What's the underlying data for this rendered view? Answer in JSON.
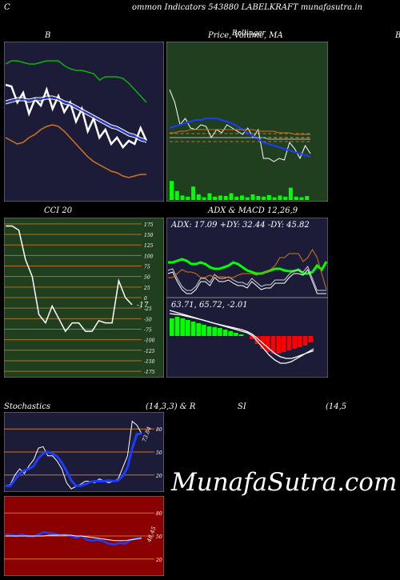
{
  "header": {
    "left_glyph": "C",
    "title": "ommon  Indicators 543880  LABELKRAFT munafasutra.in",
    "right_glyph": "B"
  },
  "labels": {
    "bb": "B",
    "price": "Price,  Volume,  MA",
    "price_overlay": "Bollinger",
    "cci": "CCI 20",
    "adx_macd": "ADX  & MACD 12,26,9",
    "adx_values": "ADX: 17.09  +DY: 32.44  -DY: 45.82",
    "macd_values": "63.71,  65.72,  -2.01",
    "stoch_left": "Stochastics",
    "stoch_params": "(14,3,3) & R",
    "si": "SI",
    "si_params": "(14,5",
    "stoch_value": "73.84",
    "rsi_value": "48.45"
  },
  "watermark": "MunafaSutra.com",
  "colors": {
    "navy": "#1c1c38",
    "green_panel": "#1f3f1f",
    "red_panel": "#8b0000",
    "orange": "#d2751a",
    "green": "#0ab20a",
    "blue": "#1e3cff",
    "lime": "#00ff00",
    "red": "#ff0000"
  },
  "chart_data": [
    {
      "type": "line",
      "name": "bollinger",
      "series": [
        {
          "name": "price",
          "values": [
            0.73,
            0.72,
            0.62,
            0.68,
            0.55,
            0.64,
            0.6,
            0.7,
            0.58,
            0.66,
            0.56,
            0.62,
            0.5,
            0.58,
            0.44,
            0.52,
            0.4,
            0.45,
            0.36,
            0.4,
            0.34,
            0.38,
            0.36,
            0.46,
            0.38
          ]
        },
        {
          "name": "upper",
          "values": [
            0.86,
            0.88,
            0.88,
            0.87,
            0.86,
            0.86,
            0.87,
            0.88,
            0.88,
            0.88,
            0.85,
            0.83,
            0.82,
            0.82,
            0.81,
            0.8,
            0.76,
            0.78,
            0.78,
            0.78,
            0.77,
            0.74,
            0.7,
            0.66,
            0.62
          ]
        },
        {
          "name": "middle",
          "values": [
            0.62,
            0.63,
            0.64,
            0.64,
            0.63,
            0.64,
            0.64,
            0.65,
            0.65,
            0.64,
            0.62,
            0.61,
            0.59,
            0.57,
            0.55,
            0.53,
            0.51,
            0.49,
            0.47,
            0.46,
            0.44,
            0.42,
            0.41,
            0.39,
            0.38
          ]
        },
        {
          "name": "lower",
          "values": [
            0.4,
            0.38,
            0.36,
            0.37,
            0.4,
            0.42,
            0.45,
            0.47,
            0.48,
            0.47,
            0.44,
            0.4,
            0.36,
            0.32,
            0.28,
            0.25,
            0.23,
            0.21,
            0.19,
            0.18,
            0.16,
            0.15,
            0.16,
            0.17,
            0.17
          ]
        }
      ],
      "ylim": [
        0,
        1
      ]
    },
    {
      "type": "line",
      "name": "price_volume_ma",
      "series": [
        {
          "name": "price",
          "values": [
            0.7,
            0.62,
            0.48,
            0.52,
            0.46,
            0.45,
            0.48,
            0.47,
            0.4,
            0.45,
            0.43,
            0.48,
            0.46,
            0.44,
            0.42,
            0.46,
            0.4,
            0.45,
            0.27,
            0.27,
            0.25,
            0.27,
            0.26,
            0.37,
            0.33,
            0.27,
            0.35,
            0.3
          ]
        },
        {
          "name": "ma_blue",
          "values": [
            0.46,
            0.47,
            0.48,
            0.49,
            0.5,
            0.51,
            0.51,
            0.52,
            0.52,
            0.52,
            0.51,
            0.5,
            0.49,
            0.47,
            0.45,
            0.43,
            0.41,
            0.39,
            0.37,
            0.36,
            0.35,
            0.34,
            0.33,
            0.32,
            0.31,
            0.3,
            0.29,
            0.28
          ]
        },
        {
          "name": "ma_orange",
          "values": [
            0.43,
            0.43,
            0.44,
            0.44,
            0.45,
            0.45,
            0.45,
            0.45,
            0.45,
            0.45,
            0.45,
            0.45,
            0.45,
            0.45,
            0.45,
            0.45,
            0.45,
            0.44,
            0.44,
            0.44,
            0.44,
            0.43,
            0.43,
            0.43,
            0.42,
            0.42,
            0.42,
            0.42
          ]
        },
        {
          "name": "ma_gray",
          "values": [
            0.4,
            0.4,
            0.4,
            0.4,
            0.4,
            0.4,
            0.4,
            0.4,
            0.4,
            0.4,
            0.4,
            0.4,
            0.4,
            0.4,
            0.4,
            0.4,
            0.4,
            0.4,
            0.4,
            0.39,
            0.39,
            0.39,
            0.39,
            0.39,
            0.39,
            0.39,
            0.39,
            0.39
          ]
        }
      ],
      "volume": [
        0.85,
        0.4,
        0.2,
        0.15,
        0.6,
        0.25,
        0.12,
        0.3,
        0.15,
        0.2,
        0.18,
        0.3,
        0.15,
        0.2,
        0.12,
        0.25,
        0.18,
        0.15,
        0.22,
        0.12,
        0.2,
        0.15,
        0.55,
        0.15,
        0.12,
        0.18
      ],
      "ylim": [
        0,
        1
      ]
    },
    {
      "type": "line",
      "name": "cci",
      "yticks": [
        175,
        150,
        125,
        100,
        75,
        50,
        25,
        0,
        -25,
        -50,
        -75,
        -100,
        -125,
        -150,
        -175
      ],
      "ylim": [
        -190,
        190
      ],
      "series": [
        {
          "name": "CCI 20",
          "values": [
            170,
            170,
            160,
            90,
            50,
            -40,
            -60,
            -20,
            -50,
            -80,
            -60,
            -60,
            -80,
            -80,
            -55,
            -60,
            -60,
            40,
            0,
            -17
          ]
        }
      ],
      "last_value": "-17"
    },
    {
      "type": "line",
      "name": "adx",
      "series": [
        {
          "name": "ADX",
          "values": [
            0.44,
            0.44,
            0.46,
            0.48,
            0.46,
            0.42,
            0.42,
            0.44,
            0.42,
            0.38,
            0.36,
            0.36,
            0.38,
            0.4,
            0.44,
            0.42,
            0.38,
            0.34,
            0.32,
            0.3,
            0.3,
            0.32,
            0.34,
            0.36,
            0.36,
            0.34,
            0.33,
            0.33,
            0.35,
            0.3,
            0.3,
            0.32,
            0.4,
            0.35,
            0.45
          ]
        },
        {
          "name": "+DY",
          "values": [
            0.3,
            0.32,
            0.2,
            0.1,
            0.05,
            0.05,
            0.1,
            0.2,
            0.2,
            0.15,
            0.25,
            0.2,
            0.2,
            0.22,
            0.18,
            0.15,
            0.15,
            0.12,
            0.2,
            0.15,
            0.1,
            0.12,
            0.12,
            0.18,
            0.18,
            0.18,
            0.25,
            0.3,
            0.3,
            0.28,
            0.35,
            0.2,
            0.05,
            0.05,
            0.05
          ]
        },
        {
          "name": "-DY",
          "values": [
            0.25,
            0.25,
            0.3,
            0.35,
            0.32,
            0.32,
            0.3,
            0.25,
            0.25,
            0.28,
            0.25,
            0.26,
            0.26,
            0.25,
            0.25,
            0.28,
            0.3,
            0.3,
            0.3,
            0.28,
            0.3,
            0.32,
            0.35,
            0.4,
            0.5,
            0.5,
            0.55,
            0.55,
            0.55,
            0.45,
            0.5,
            0.6,
            0.5,
            0.3,
            0.1
          ]
        }
      ],
      "ylim": [
        0,
        1
      ]
    },
    {
      "type": "bar",
      "name": "macd",
      "histogram": [
        0.55,
        0.6,
        0.55,
        0.5,
        0.45,
        0.4,
        0.35,
        0.3,
        0.28,
        0.25,
        0.2,
        0.15,
        0.1,
        0.05,
        0.0,
        -0.1,
        -0.25,
        -0.4,
        -0.5,
        -0.55,
        -0.55,
        -0.5,
        -0.45,
        -0.4,
        -0.35,
        -0.3,
        -0.2
      ],
      "series": [
        {
          "name": "macd",
          "values": [
            0.8,
            0.75,
            0.7,
            0.65,
            0.6,
            0.55,
            0.5,
            0.45,
            0.4,
            0.35,
            0.3,
            0.25,
            0.2,
            0.15,
            0.1,
            0.0,
            -0.2,
            -0.4,
            -0.6,
            -0.75,
            -0.85,
            -0.85,
            -0.8,
            -0.7,
            -0.6,
            -0.5,
            -0.4
          ]
        },
        {
          "name": "signal",
          "values": [
            0.7,
            0.68,
            0.66,
            0.62,
            0.58,
            0.54,
            0.5,
            0.45,
            0.4,
            0.36,
            0.32,
            0.28,
            0.24,
            0.2,
            0.14,
            0.05,
            -0.1,
            -0.25,
            -0.4,
            -0.55,
            -0.65,
            -0.7,
            -0.7,
            -0.65,
            -0.58,
            -0.52,
            -0.46
          ]
        }
      ],
      "ylim": [
        -1,
        1
      ]
    },
    {
      "type": "line",
      "name": "stochastics",
      "yticks": [
        80,
        50,
        20
      ],
      "ylim": [
        0,
        100
      ],
      "series": [
        {
          "name": "%K",
          "values": [
            5,
            8,
            20,
            28,
            22,
            32,
            40,
            55,
            57,
            45,
            45,
            38,
            28,
            10,
            2,
            5,
            8,
            12,
            12,
            10,
            15,
            12,
            10,
            12,
            15,
            30,
            45,
            90,
            85,
            74
          ]
        },
        {
          "name": "%D",
          "values": [
            6,
            6,
            14,
            22,
            26,
            28,
            32,
            42,
            48,
            50,
            48,
            44,
            36,
            25,
            13,
            6,
            6,
            8,
            11,
            12,
            12,
            12,
            13,
            12,
            13,
            19,
            30,
            55,
            73,
            74
          ]
        }
      ],
      "value": "73.84"
    },
    {
      "type": "line",
      "name": "rsi",
      "yticks": [
        80,
        50,
        20
      ],
      "ylim": [
        0,
        100
      ],
      "series": [
        {
          "name": "RSI",
          "values": [
            52,
            51,
            50,
            52,
            50,
            49,
            52,
            55,
            54,
            53,
            51,
            52,
            50,
            48,
            50,
            45,
            44,
            45,
            43,
            40,
            39,
            41,
            40,
            45,
            47,
            48
          ]
        },
        {
          "name": "MA",
          "values": [
            50,
            50,
            50,
            50,
            50,
            50,
            50,
            50,
            51,
            51,
            51,
            51,
            51,
            50,
            50,
            49,
            48,
            47,
            46,
            45,
            44,
            44,
            44,
            45,
            46,
            47
          ]
        }
      ],
      "value": "48.45"
    }
  ]
}
